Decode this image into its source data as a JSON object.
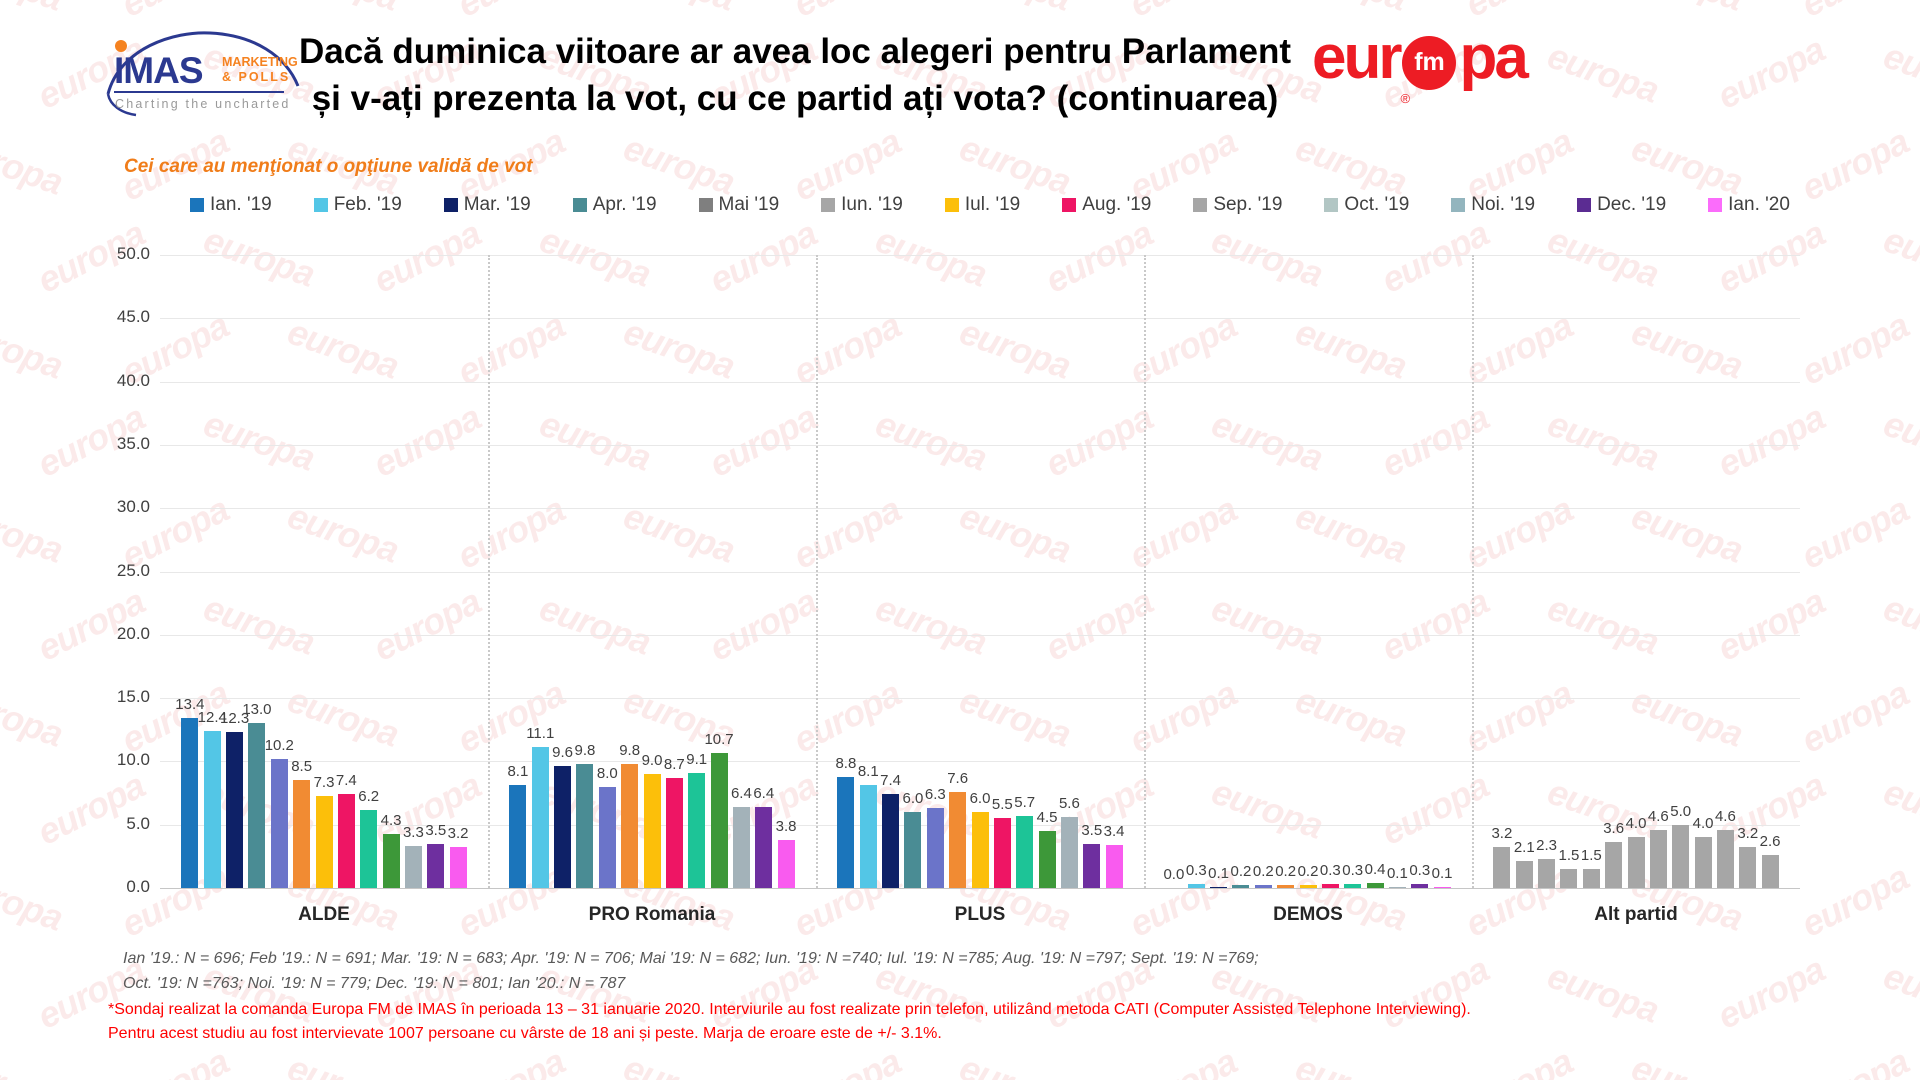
{
  "watermark": {
    "text": "europa"
  },
  "header": {
    "imas_logo": {
      "wordmark": "IMAS",
      "sub_line1": "MARKETING",
      "sub_line2": "& POLLS",
      "tagline": "Charting the uncharted"
    },
    "europafm_logo": {
      "left": "eur",
      "badge": "fm",
      "right": "pa",
      "registered": "®"
    }
  },
  "chart_data": {
    "type": "bar",
    "title_line1": "Dacă duminica viitoare ar avea loc alegeri pentru Parlament",
    "title_line2": "și v-ați prezenta la vot, cu ce partid ați vota? (continuarea)",
    "subtitle": "Cei care au menţionat o opţiune validă de vot",
    "xlabel": "",
    "ylabel": "",
    "ylim": [
      0,
      50
    ],
    "ytick_step": 5,
    "yticks": [
      "0.0",
      "5.0",
      "10.0",
      "15.0",
      "20.0",
      "25.0",
      "30.0",
      "35.0",
      "40.0",
      "45.0",
      "50.0"
    ],
    "grid": true,
    "legend_position": "top",
    "categories": [
      "ALDE",
      "PRO Romania",
      "PLUS",
      "DEMOS",
      "Alt partid"
    ],
    "category_color_overrides": {
      "Alt partid": "#A6A6A6"
    },
    "series": [
      {
        "name": "Ian. '19",
        "color": "#1B75BB",
        "legend_color": "#1B75BB",
        "values": [
          13.4,
          8.1,
          8.8,
          0.0,
          3.2
        ]
      },
      {
        "name": "Feb. '19",
        "color": "#53C6E6",
        "legend_color": "#53C6E6",
        "values": [
          12.4,
          11.1,
          8.1,
          0.3,
          2.1
        ]
      },
      {
        "name": "Mar. '19",
        "color": "#0E2167",
        "legend_color": "#0E2167",
        "values": [
          12.3,
          9.6,
          7.4,
          0.1,
          2.3
        ]
      },
      {
        "name": "Apr. '19",
        "color": "#4A8C94",
        "legend_color": "#4A8C94",
        "values": [
          13.0,
          9.8,
          6.0,
          0.2,
          1.5
        ]
      },
      {
        "name": "Mai '19",
        "color": "#6B74C9",
        "legend_color": "#7F7F7F",
        "values": [
          10.2,
          8.0,
          6.3,
          0.2,
          1.5
        ]
      },
      {
        "name": "Iun. '19",
        "color": "#F18B33",
        "legend_color": "#A6A6A6",
        "values": [
          8.5,
          9.8,
          7.6,
          0.2,
          3.6
        ]
      },
      {
        "name": "Iul. '19",
        "color": "#FCBF0A",
        "legend_color": "#FCBF0A",
        "values": [
          7.3,
          9.0,
          6.0,
          0.2,
          4.0
        ]
      },
      {
        "name": "Aug. '19",
        "color": "#EE1564",
        "legend_color": "#EE1564",
        "values": [
          7.4,
          8.7,
          5.5,
          0.3,
          4.6
        ]
      },
      {
        "name": "Sep. '19",
        "color": "#1DC497",
        "legend_color": "#A6A6A6",
        "values": [
          6.2,
          9.1,
          5.7,
          0.3,
          5.0
        ]
      },
      {
        "name": "Oct. '19",
        "color": "#3D9839",
        "legend_color": "#B2C6C4",
        "values": [
          4.3,
          10.7,
          4.5,
          0.4,
          4.0
        ]
      },
      {
        "name": "Noi. '19",
        "color": "#A3B2B9",
        "legend_color": "#93B5BE",
        "values": [
          3.3,
          6.4,
          5.6,
          0.1,
          4.6
        ]
      },
      {
        "name": "Dec. '19",
        "color": "#6E2F9F",
        "legend_color": "#5B2C92",
        "values": [
          3.5,
          6.4,
          3.5,
          0.3,
          3.2
        ]
      },
      {
        "name": "Ian. '20",
        "color": "#F95BEF",
        "legend_color": "#FB6CFB",
        "values": [
          3.2,
          3.8,
          3.4,
          0.1,
          2.6
        ]
      }
    ]
  },
  "footnotes": {
    "samples_line1": "Ian '19.: N = 696; Feb '19.: N = 691; Mar. '19: N = 683; Apr. '19: N = 706; Mai '19: N = 682; Iun. '19: N =740; Iul. '19: N =785; Aug. '19: N =797; Sept. '19: N =769;",
    "samples_line2": "Oct. '19: N =763; Noi. '19: N = 779; Dec. '19: N = 801; Ian '20.: N = 787",
    "methodology_line1": "*Sondaj realizat la comanda Europa FM de IMAS în perioada 13 – 31 ianuarie 2020. Interviurile au fost realizate prin telefon, utilizând metoda CATI (Computer Assisted Telephone Interviewing).",
    "methodology_line2": "Pentru acest studiu au fost intervievate 1007 persoane cu vârste de 18 ani și peste. Marja de eroare este de +/- 3.1%."
  }
}
